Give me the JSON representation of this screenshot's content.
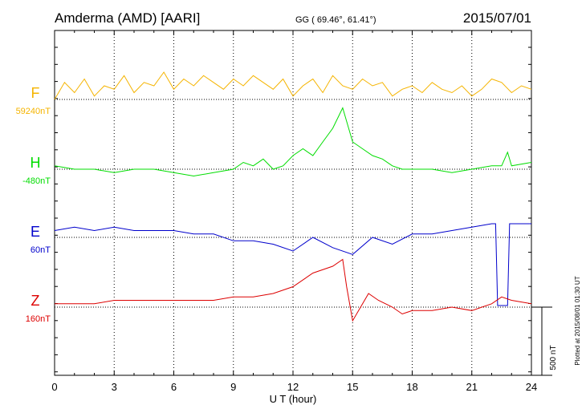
{
  "header": {
    "station": "Amderma (AMD)  [AARI]",
    "coords": "GG ( 69.46°,  61.41°)",
    "date": "2015/07/01"
  },
  "footer": {
    "plotted": "Plotted at 2015/08/01 01:30 UT"
  },
  "colors": {
    "F": "#f5b400",
    "H": "#00dd00",
    "E": "#0000cc",
    "Z": "#dd0000"
  },
  "chart_data": {
    "type": "line",
    "title": "",
    "xlabel": "U T (hour)",
    "x_ticks": [
      "0",
      "3",
      "6",
      "9",
      "12",
      "15",
      "18",
      "21",
      "24"
    ],
    "xlim": [
      0,
      24
    ],
    "scale_bar_label": "500 nT",
    "scale_bar_value_nT": 500,
    "grid": true,
    "series": [
      {
        "name": "F",
        "baseline_label": "59240nT",
        "baseline_nT": 59240,
        "x": [
          0,
          0.5,
          1,
          1.5,
          2,
          2.5,
          3,
          3.5,
          4,
          4.5,
          5,
          5.5,
          6,
          6.5,
          7,
          7.5,
          8,
          8.5,
          9,
          9.5,
          10,
          10.5,
          11,
          11.5,
          12,
          12.5,
          13,
          13.5,
          14,
          14.5,
          15,
          15.5,
          16,
          16.5,
          17,
          17.5,
          18,
          18.5,
          19,
          19.5,
          20,
          20.5,
          21,
          21.5,
          22,
          22.5,
          23,
          23.5,
          24
        ],
        "values": [
          0,
          25,
          10,
          30,
          5,
          20,
          15,
          35,
          10,
          25,
          20,
          40,
          15,
          30,
          20,
          35,
          25,
          15,
          30,
          20,
          35,
          25,
          15,
          30,
          5,
          20,
          30,
          10,
          35,
          20,
          15,
          30,
          20,
          25,
          5,
          15,
          20,
          10,
          25,
          15,
          10,
          20,
          5,
          15,
          30,
          25,
          10,
          20,
          15
        ]
      },
      {
        "name": "H",
        "baseline_label": "-480nT",
        "baseline_nT": -480,
        "x": [
          0,
          1,
          2,
          3,
          4,
          5,
          6,
          7,
          8,
          9,
          9.5,
          10,
          10.5,
          11,
          11.5,
          12,
          12.5,
          13,
          13.5,
          14,
          14.5,
          15,
          15.5,
          16,
          16.5,
          17,
          17.5,
          18,
          19,
          20,
          21,
          22,
          22.5,
          22.8,
          23,
          24
        ],
        "values": [
          5,
          0,
          0,
          -5,
          0,
          0,
          -5,
          -10,
          -5,
          0,
          10,
          5,
          15,
          0,
          5,
          20,
          30,
          20,
          40,
          60,
          90,
          40,
          30,
          20,
          15,
          5,
          0,
          0,
          0,
          -5,
          0,
          5,
          5,
          25,
          5,
          10
        ]
      },
      {
        "name": "E",
        "baseline_label": "60nT",
        "baseline_nT": 60,
        "x": [
          0,
          1,
          2,
          3,
          4,
          5,
          6,
          7,
          8,
          9,
          10,
          11,
          12,
          13,
          14,
          15,
          16,
          17,
          18,
          19,
          20,
          21,
          22,
          22.2,
          22.3,
          22.8,
          22.9,
          23,
          24
        ],
        "values": [
          10,
          15,
          10,
          15,
          10,
          10,
          10,
          5,
          5,
          -5,
          -5,
          -10,
          -20,
          0,
          -15,
          -25,
          0,
          -10,
          5,
          5,
          10,
          15,
          20,
          20,
          -100,
          -100,
          20,
          20,
          20
        ]
      },
      {
        "name": "Z",
        "baseline_label": "160nT",
        "baseline_nT": 160,
        "x": [
          0,
          1,
          2,
          3,
          4,
          5,
          6,
          7,
          8,
          9,
          10,
          11,
          12,
          13,
          14,
          14.5,
          14.7,
          15,
          15.3,
          15.8,
          16.3,
          17,
          17.5,
          18,
          19,
          20,
          21,
          22,
          22.5,
          23,
          24
        ],
        "values": [
          5,
          5,
          5,
          10,
          10,
          10,
          10,
          10,
          10,
          15,
          15,
          20,
          30,
          50,
          60,
          70,
          30,
          -20,
          -5,
          20,
          10,
          0,
          -10,
          -5,
          -5,
          0,
          -5,
          5,
          15,
          10,
          5
        ]
      }
    ]
  }
}
